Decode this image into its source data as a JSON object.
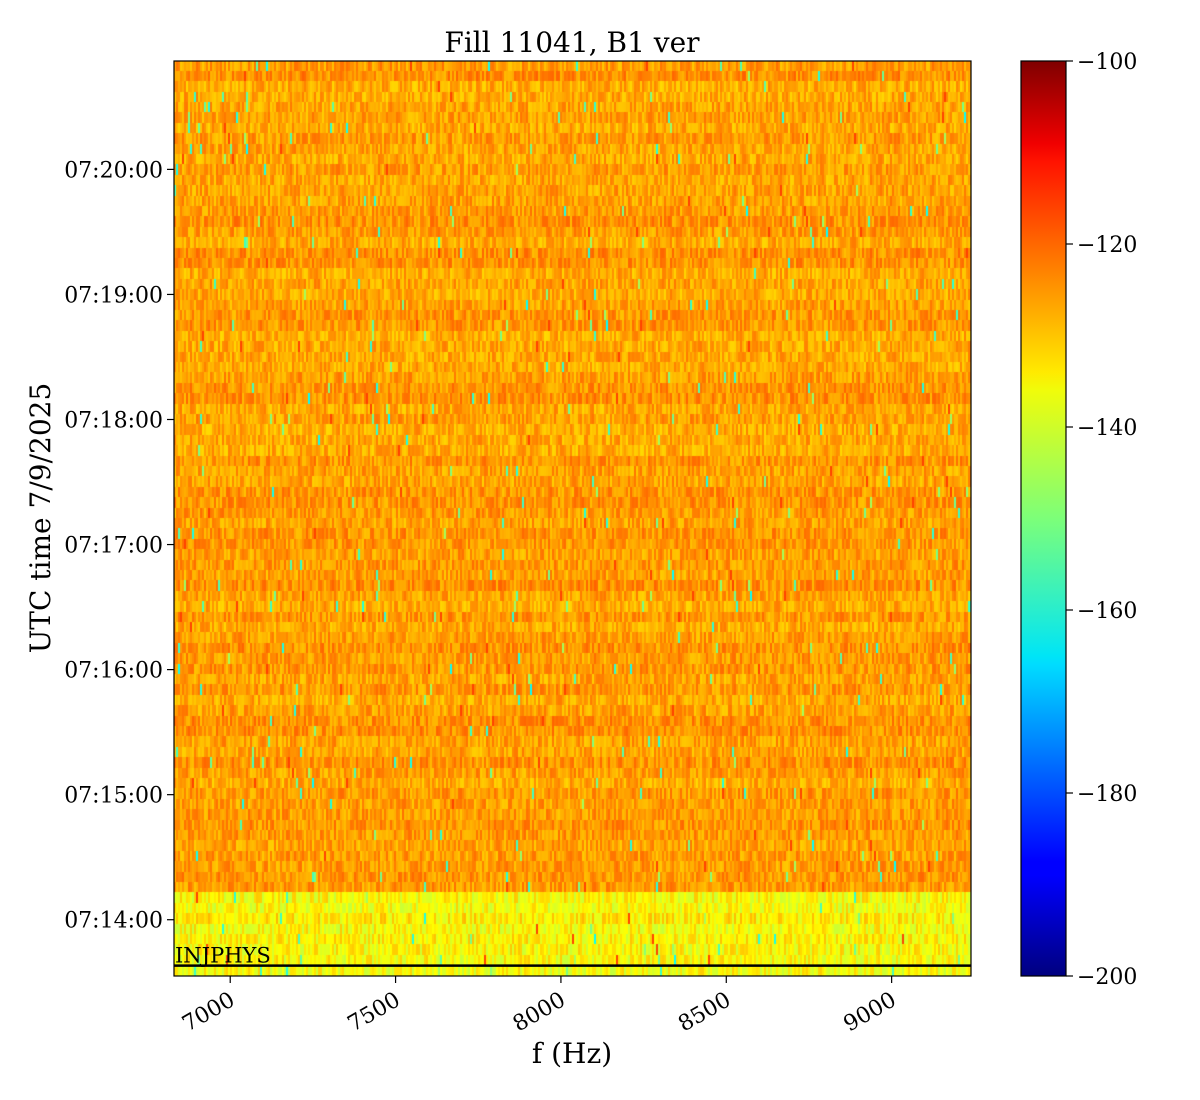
{
  "chart_data": {
    "type": "heatmap",
    "title": "Fill 11041, B1 ver",
    "xlabel": "f (Hz)",
    "ylabel": "UTC time 7/9/2025",
    "xlim": [
      6830,
      9240
    ],
    "ylim": [
      "07:13:33",
      "07:20:52"
    ],
    "x_ticks": [
      7000,
      7500,
      8000,
      8500,
      9000
    ],
    "x_tick_labels": [
      "7000",
      "7500",
      "8000",
      "8500",
      "9000"
    ],
    "y_ticks": [
      "07:14:00",
      "07:15:00",
      "07:16:00",
      "07:17:00",
      "07:18:00",
      "07:19:00",
      "07:20:00"
    ],
    "colorbar": {
      "min": -200,
      "max": -100,
      "ticks": [
        -100,
        -120,
        -140,
        -160,
        -180,
        -200
      ],
      "tick_labels": [
        "−100",
        "−120",
        "−140",
        "−160",
        "−180",
        "−200"
      ],
      "colormap": "jet"
    },
    "value_summary": {
      "after 07:14:15 typical": [
        -132,
        -124
      ],
      "before 07:14:15 typical": [
        -142,
        -132
      ],
      "isolated minima": -178,
      "isolated maxima": -117
    },
    "annotation": {
      "text": "INJPHYS",
      "time": "07:13:38",
      "line_color": "#000000"
    },
    "grid": false
  }
}
